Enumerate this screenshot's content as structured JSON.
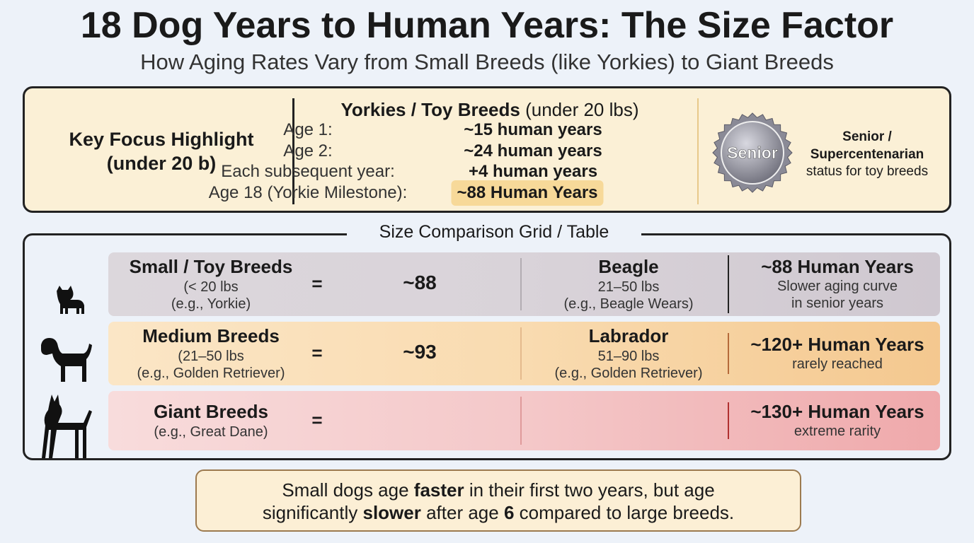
{
  "header": {
    "title": "18 Dog Years to Human Years: The Size Factor",
    "subtitle": "How Aging Rates Vary from Small Breeds (like Yorkies) to Giant Breeds"
  },
  "highlight": {
    "label": [
      "Key Focus Highlight",
      "(under 20 b)"
    ],
    "heading": "Yorkies / Toy Breeds",
    "heading_note": "(under 20 lbs)",
    "rows": [
      [
        "Age 1:",
        "~15 human years"
      ],
      [
        "Age 2:",
        "~24 human years"
      ],
      [
        "Each subsequent year:",
        "+4 human years"
      ],
      [
        "Age 18 (Yorkie Milestone):",
        "~88 Human Years"
      ]
    ],
    "badge": "Senior",
    "caption": [
      "Senior /",
      "Supercentenarian",
      "status for toy breeds"
    ]
  },
  "grid": {
    "title": "Size Comparison Grid / Table",
    "rows": [
      {
        "name": "Small / Toy Breeds",
        "details": [
          "(< 20 lbs",
          "(e.g., Yorkie)"
        ],
        "equals": "=",
        "value": "~88",
        "compare": "Beagle",
        "compare_details": [
          "21–50 lbs",
          "(e.g., Beagle Wears)"
        ],
        "result": "~88 Human Years",
        "result_note": [
          "Slower aging curve",
          "in senior years"
        ]
      },
      {
        "name": "Medium Breeds",
        "details": [
          "(21–50 lbs",
          "(e.g., Golden Retriever)"
        ],
        "equals": "=",
        "value": "~93",
        "compare": "Labrador",
        "compare_details": [
          "51–90 lbs",
          "(e.g., Golden Retriever)"
        ],
        "result": "~120+ Human Years",
        "result_note": [
          "rarely reached"
        ]
      },
      {
        "name": "Giant Breeds",
        "details": [
          "(e.g., Great Dane)"
        ],
        "equals": "=",
        "result": "~130+ Human Years",
        "result_note": [
          "extreme rarity"
        ]
      }
    ]
  },
  "footer": {
    "lines": [
      [
        {
          "text": "Small dogs age ",
          "bold": false
        },
        {
          "text": "faster",
          "bold": true
        },
        {
          "text": " in their first two years, but age",
          "bold": false
        }
      ],
      [
        {
          "text": "significantly ",
          "bold": false
        },
        {
          "text": "slower",
          "bold": true
        },
        {
          "text": " after age ",
          "bold": false
        },
        {
          "text": "6",
          "bold": true
        },
        {
          "text": " compared to large breeds.",
          "bold": false
        }
      ]
    ]
  }
}
